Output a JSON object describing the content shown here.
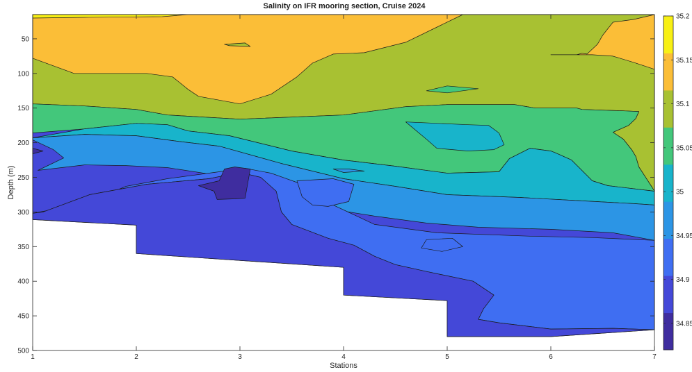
{
  "chart_data": {
    "type": "contour",
    "title": "Salinity on IFR mooring section, Cruise 2024",
    "xlabel": "Stations",
    "ylabel": "Depth (m)",
    "xlim": [
      1,
      7
    ],
    "ylim": [
      500,
      15
    ],
    "y_reversed": true,
    "xticks": [
      1,
      2,
      3,
      4,
      5,
      6,
      7
    ],
    "yticks": [
      50,
      100,
      150,
      200,
      250,
      300,
      350,
      400,
      450,
      500
    ],
    "colorbar": {
      "range": [
        34.82,
        35.2
      ],
      "ticks": [
        34.85,
        34.9,
        34.95,
        35.0,
        35.05,
        35.1,
        35.15,
        35.2
      ],
      "tick_labels": [
        "34.85",
        "34.9",
        "34.95",
        "35",
        "35.05",
        "35.1",
        "35.15",
        "35.2"
      ],
      "colors": [
        "#3f2d9f",
        "#4448d8",
        "#3f6ef2",
        "#2c95e5",
        "#18b4cb",
        "#43c77b",
        "#a8c132",
        "#fbbe37",
        "#f8f014"
      ]
    },
    "levels": [
      {
        "level": 34.825,
        "color": "#3f2d9f"
      },
      {
        "level": 34.85,
        "color": "#4448d8"
      },
      {
        "level": 34.9,
        "color": "#3f6ef2"
      },
      {
        "level": 34.95,
        "color": "#2c95e5"
      },
      {
        "level": 35.0,
        "color": "#18b4cb"
      },
      {
        "level": 35.05,
        "color": "#43c77b"
      },
      {
        "level": 35.1,
        "color": "#a8c132"
      },
      {
        "level": 35.15,
        "color": "#fbbe37"
      },
      {
        "level": 35.2,
        "color": "#f8f014"
      }
    ],
    "bottom_depth": [
      [
        1.0,
        311
      ],
      [
        2.0,
        319
      ],
      [
        2.0,
        360
      ],
      [
        4.0,
        380
      ],
      [
        4.0,
        420
      ],
      [
        5.0,
        428
      ],
      [
        5.0,
        480
      ],
      [
        6.0,
        480
      ],
      [
        7.0,
        470
      ]
    ],
    "regions": [
      {
        "level": 35.1,
        "points": [
          [
            1,
            144
          ],
          [
            1.5,
            147
          ],
          [
            2.0,
            152
          ],
          [
            2.3,
            160
          ],
          [
            3.0,
            166
          ],
          [
            4.0,
            160
          ],
          [
            4.6,
            148
          ],
          [
            5.0,
            145
          ],
          [
            5.65,
            145
          ],
          [
            5.85,
            150
          ],
          [
            6.0,
            150
          ],
          [
            6.25,
            150
          ],
          [
            6.3,
            152
          ],
          [
            6.7,
            154
          ],
          [
            6.85,
            155
          ],
          [
            6.82,
            165
          ],
          [
            6.75,
            175
          ],
          [
            6.6,
            185
          ],
          [
            6.7,
            195
          ],
          [
            6.78,
            210
          ],
          [
            6.82,
            220
          ],
          [
            6.85,
            235
          ],
          [
            6.98,
            265
          ],
          [
            7,
            270
          ],
          [
            7,
            15
          ],
          [
            1,
            15
          ]
        ]
      },
      {
        "level": 35.15,
        "points": [
          [
            1,
            15
          ],
          [
            2.5,
            15
          ],
          [
            4.2,
            15
          ],
          [
            5.15,
            15
          ],
          [
            4.6,
            55
          ],
          [
            4.2,
            70
          ],
          [
            3.9,
            72
          ],
          [
            3.7,
            85
          ],
          [
            3.55,
            105
          ],
          [
            3.3,
            130
          ],
          [
            3.0,
            144
          ],
          [
            2.6,
            133
          ],
          [
            2.5,
            123
          ],
          [
            2.35,
            105
          ],
          [
            2.1,
            100
          ],
          [
            1.4,
            100
          ],
          [
            1,
            78
          ]
        ]
      },
      {
        "level": 35.15,
        "points": [
          [
            6.0,
            73
          ],
          [
            6.15,
            73
          ],
          [
            6.25,
            73
          ],
          [
            6.3,
            71
          ],
          [
            6.35,
            72
          ],
          [
            6.45,
            58
          ],
          [
            6.5,
            45
          ],
          [
            6.6,
            26
          ],
          [
            6.8,
            22
          ],
          [
            7,
            15
          ],
          [
            7,
            94
          ],
          [
            6.8,
            84
          ],
          [
            6.6,
            75
          ],
          [
            6.4,
            73
          ]
        ]
      },
      {
        "level": 35.2,
        "points": [
          [
            1,
            15
          ],
          [
            2.5,
            15
          ],
          [
            2.25,
            18
          ],
          [
            1.5,
            19
          ],
          [
            1,
            20
          ]
        ]
      },
      {
        "level": 35.1,
        "points": [
          [
            2.85,
            58
          ],
          [
            3.05,
            56
          ],
          [
            3.1,
            61
          ],
          [
            2.9,
            60
          ]
        ]
      },
      {
        "level": 35.05,
        "points": [
          [
            1,
            186
          ],
          [
            1.5,
            180
          ],
          [
            2,
            172
          ],
          [
            2.3,
            174
          ],
          [
            2.5,
            183
          ],
          [
            2.9,
            190
          ],
          [
            3.5,
            212
          ],
          [
            4.0,
            225
          ],
          [
            4.5,
            234
          ],
          [
            5.0,
            244
          ],
          [
            5.5,
            242
          ],
          [
            5.6,
            223
          ],
          [
            5.8,
            208
          ],
          [
            6.0,
            212
          ],
          [
            6.05,
            215
          ],
          [
            6.2,
            225
          ],
          [
            6.4,
            255
          ],
          [
            6.55,
            262
          ],
          [
            7,
            270
          ],
          [
            6.98,
            265
          ],
          [
            6.85,
            235
          ],
          [
            6.82,
            220
          ],
          [
            6.78,
            210
          ],
          [
            6.7,
            195
          ],
          [
            6.6,
            185
          ],
          [
            6.75,
            175
          ],
          [
            6.82,
            165
          ],
          [
            6.85,
            155
          ],
          [
            6.7,
            154
          ],
          [
            6.3,
            152
          ],
          [
            6.25,
            150
          ],
          [
            6.0,
            150
          ],
          [
            5.85,
            150
          ],
          [
            5.65,
            145
          ],
          [
            5.0,
            145
          ],
          [
            4.6,
            148
          ],
          [
            4.0,
            160
          ],
          [
            3.0,
            166
          ],
          [
            2.3,
            160
          ],
          [
            2.0,
            152
          ],
          [
            1.5,
            147
          ],
          [
            1,
            144
          ]
        ]
      },
      {
        "level": 35.05,
        "points": [
          [
            4.8,
            125
          ],
          [
            5.0,
            118
          ],
          [
            5.3,
            122
          ],
          [
            5.0,
            128
          ]
        ]
      },
      {
        "level": 35.0,
        "points": [
          [
            1,
            193
          ],
          [
            1.5,
            188
          ],
          [
            2.0,
            190
          ],
          [
            2.4,
            198
          ],
          [
            2.8,
            205
          ],
          [
            3.4,
            230
          ],
          [
            4.0,
            252
          ],
          [
            4.5,
            263
          ],
          [
            5.0,
            275
          ],
          [
            5.7,
            279
          ],
          [
            6.3,
            284
          ],
          [
            6.8,
            288
          ],
          [
            7,
            290
          ],
          [
            7,
            270
          ],
          [
            6.55,
            262
          ],
          [
            6.4,
            255
          ],
          [
            6.2,
            225
          ],
          [
            6.05,
            215
          ],
          [
            6.0,
            212
          ],
          [
            5.8,
            208
          ],
          [
            5.6,
            223
          ],
          [
            5.5,
            242
          ],
          [
            5.0,
            244
          ],
          [
            4.5,
            234
          ],
          [
            4.0,
            225
          ],
          [
            3.5,
            212
          ],
          [
            2.9,
            190
          ],
          [
            2.5,
            183
          ],
          [
            2.3,
            174
          ],
          [
            2.0,
            172
          ],
          [
            1.5,
            180
          ]
        ]
      },
      {
        "level": 35.0,
        "points": [
          [
            4.6,
            170
          ],
          [
            4.9,
            172
          ],
          [
            5.2,
            174
          ],
          [
            5.4,
            175
          ],
          [
            5.5,
            186
          ],
          [
            5.55,
            203
          ],
          [
            5.45,
            210
          ],
          [
            5.2,
            212
          ],
          [
            4.9,
            208
          ],
          [
            4.8,
            195
          ]
        ]
      },
      {
        "level": 35.0,
        "points": [
          [
            1.8,
            223
          ],
          [
            2.1,
            220
          ],
          [
            2.25,
            228
          ],
          [
            1.9,
            233
          ]
        ]
      },
      {
        "level": 34.95,
        "points": [
          [
            1,
            196
          ],
          [
            1.2,
            210
          ],
          [
            1.3,
            222
          ],
          [
            1.05,
            240
          ],
          [
            1.5,
            232
          ],
          [
            1.9,
            233
          ],
          [
            2.3,
            236
          ],
          [
            3.0,
            252
          ],
          [
            3.2,
            248
          ],
          [
            3.5,
            262
          ],
          [
            3.8,
            294
          ],
          [
            4.3,
            306
          ],
          [
            4.8,
            316
          ],
          [
            5.3,
            322
          ],
          [
            6.0,
            325
          ],
          [
            6.6,
            330
          ],
          [
            7,
            341
          ],
          [
            7,
            290
          ],
          [
            6.8,
            288
          ],
          [
            6.3,
            284
          ],
          [
            5.7,
            279
          ],
          [
            5.0,
            275
          ],
          [
            4.5,
            263
          ],
          [
            4.0,
            252
          ],
          [
            3.4,
            230
          ],
          [
            2.8,
            205
          ],
          [
            2.4,
            198
          ],
          [
            2.0,
            190
          ],
          [
            1.5,
            188
          ],
          [
            1,
            193
          ]
        ]
      },
      {
        "level": 34.95,
        "points": [
          [
            3.9,
            238
          ],
          [
            4.05,
            238
          ],
          [
            4.2,
            241
          ],
          [
            4.0,
            243
          ]
        ]
      },
      {
        "level": 34.9,
        "points": [
          [
            1,
            302
          ],
          [
            1.5,
            288
          ],
          [
            1.9,
            263
          ],
          [
            2.3,
            252
          ],
          [
            2.8,
            242
          ],
          [
            3.05,
            237
          ],
          [
            3.3,
            244
          ],
          [
            3.6,
            260
          ],
          [
            3.9,
            290
          ],
          [
            4.3,
            318
          ],
          [
            4.9,
            330
          ],
          [
            5.8,
            335
          ],
          [
            6.4,
            337
          ],
          [
            7,
            341
          ],
          [
            7,
            470
          ],
          [
            6.6,
            468
          ],
          [
            6.0,
            469
          ],
          [
            5.5,
            460
          ],
          [
            5.3,
            455
          ],
          [
            5.35,
            440
          ],
          [
            5.45,
            420
          ],
          [
            5.25,
            400
          ],
          [
            4.8,
            386
          ],
          [
            4.5,
            376
          ],
          [
            4.3,
            364
          ],
          [
            4.1,
            348
          ],
          [
            3.85,
            338
          ],
          [
            3.5,
            318
          ],
          [
            3.4,
            300
          ],
          [
            3.35,
            270
          ],
          [
            3.2,
            250
          ],
          [
            3.0,
            243
          ],
          [
            2.7,
            252
          ],
          [
            2.1,
            260
          ],
          [
            1.55,
            275
          ],
          [
            1.1,
            300
          ]
        ]
      },
      {
        "level": 34.9,
        "points": [
          [
            3.55,
            255
          ],
          [
            3.9,
            252
          ],
          [
            4.1,
            260
          ],
          [
            4.05,
            285
          ],
          [
            3.85,
            292
          ],
          [
            3.7,
            290
          ],
          [
            3.6,
            278
          ]
        ]
      },
      {
        "level": 34.9,
        "points": [
          [
            4.8,
            340
          ],
          [
            5.05,
            338
          ],
          [
            5.15,
            350
          ],
          [
            4.95,
            357
          ],
          [
            4.75,
            352
          ]
        ]
      },
      {
        "level": 34.85,
        "points": [
          [
            1,
            302
          ],
          [
            1.1,
            300
          ],
          [
            1.55,
            275
          ],
          [
            2.1,
            260
          ],
          [
            2.7,
            252
          ],
          [
            3.0,
            243
          ],
          [
            3.2,
            250
          ],
          [
            3.35,
            270
          ],
          [
            3.4,
            300
          ],
          [
            3.5,
            318
          ],
          [
            3.85,
            338
          ],
          [
            4.1,
            348
          ],
          [
            4.3,
            364
          ],
          [
            4.5,
            376
          ],
          [
            4.8,
            386
          ],
          [
            5.25,
            400
          ],
          [
            5.45,
            420
          ],
          [
            5.35,
            440
          ],
          [
            5.3,
            455
          ],
          [
            5.5,
            460
          ],
          [
            6.0,
            469
          ],
          [
            6.6,
            468
          ],
          [
            7,
            470
          ],
          [
            6.0,
            480
          ],
          [
            5.0,
            480
          ],
          [
            5.0,
            428
          ],
          [
            4.0,
            420
          ],
          [
            4.0,
            380
          ],
          [
            2.0,
            360
          ],
          [
            2.0,
            319
          ],
          [
            1.0,
            311
          ]
        ]
      },
      {
        "level": 34.825,
        "points": [
          [
            2.6,
            262
          ],
          [
            2.8,
            255
          ],
          [
            2.85,
            238
          ],
          [
            2.95,
            235
          ],
          [
            3.1,
            238
          ],
          [
            3.05,
            280
          ],
          [
            2.95,
            281
          ],
          [
            2.78,
            282
          ],
          [
            2.75,
            270
          ]
        ]
      },
      {
        "level": 34.825,
        "points": [
          [
            1,
            208
          ],
          [
            1.1,
            212
          ],
          [
            1,
            216
          ]
        ]
      }
    ]
  }
}
